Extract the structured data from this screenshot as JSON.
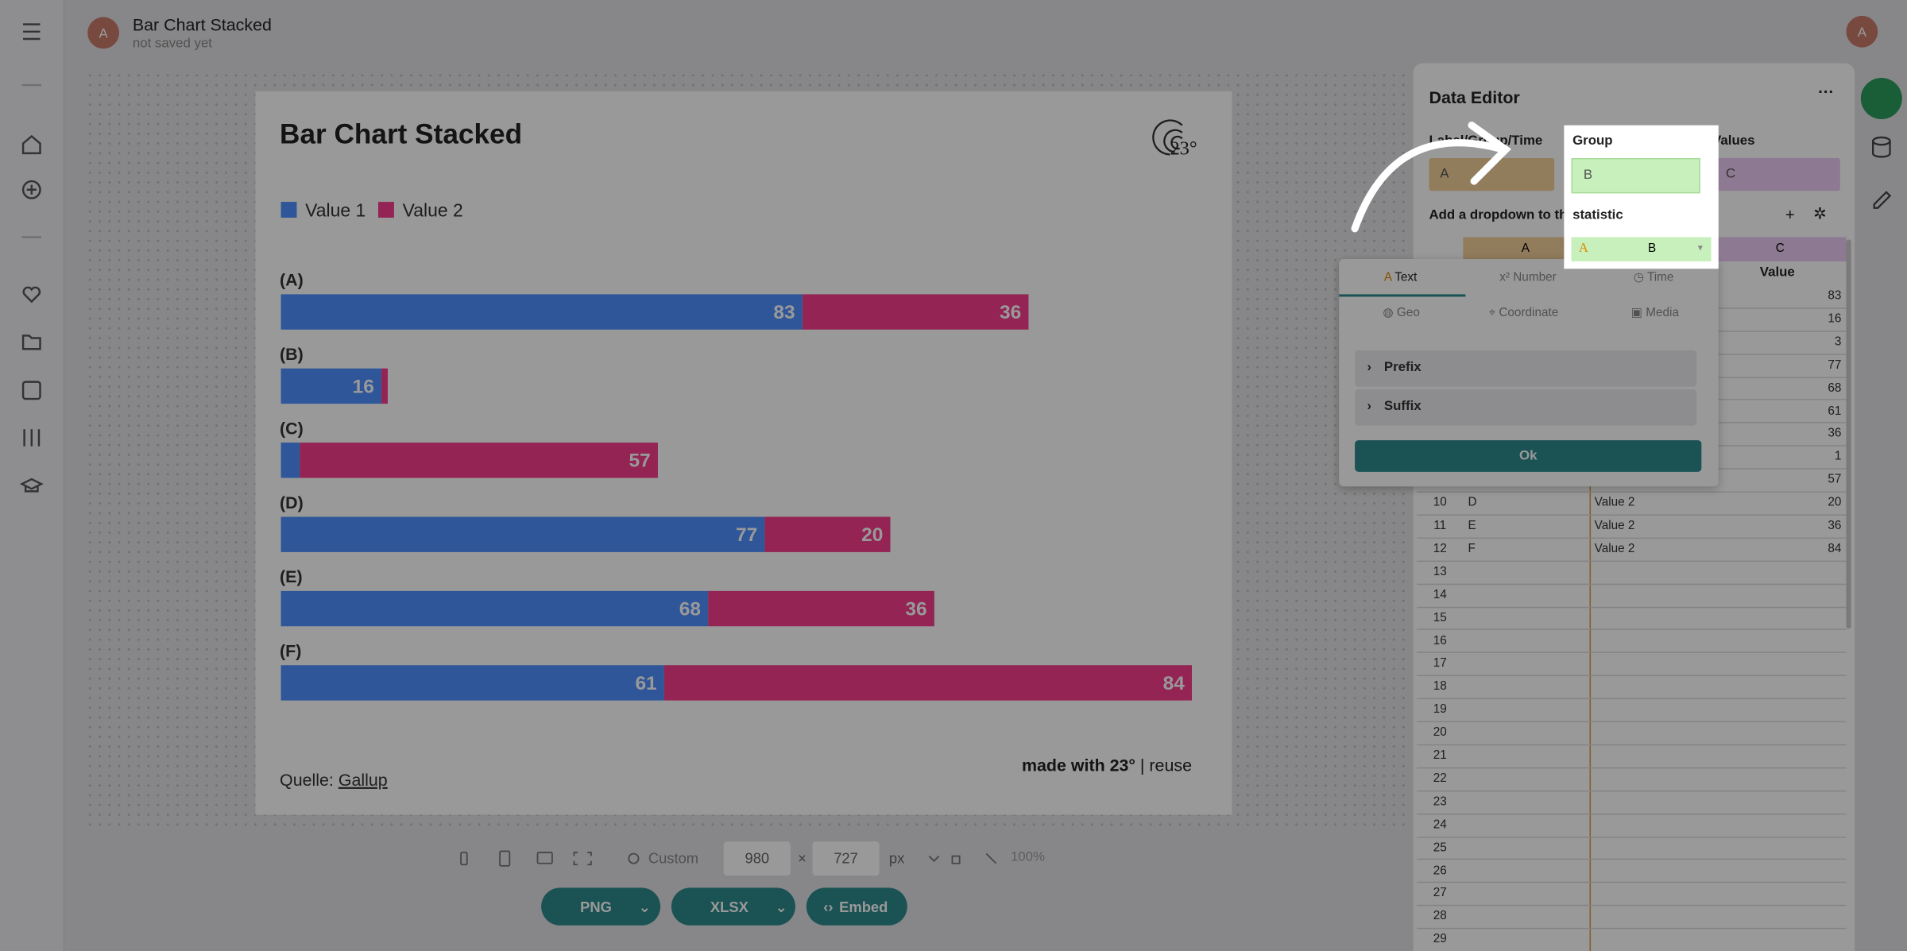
{
  "header": {
    "avatar": "A",
    "title": "Bar Chart Stacked",
    "status": "not saved yet",
    "user": "A"
  },
  "chart_data": {
    "type": "bar",
    "orientation": "horizontal",
    "stacked": true,
    "title": "Bar Chart Stacked",
    "logo": "23°",
    "categories": [
      "(A)",
      "(B)",
      "(C)",
      "(D)",
      "(E)",
      "(F)"
    ],
    "series": [
      {
        "name": "Value 1",
        "color": "#4d8fff",
        "values": [
          83,
          16,
          3,
          77,
          68,
          61
        ]
      },
      {
        "name": "Value 2",
        "color": "#f53d8c",
        "values": [
          36,
          1,
          57,
          20,
          36,
          84
        ]
      }
    ],
    "source_label": "Quelle:",
    "source": "Gallup",
    "credit": "made with 23°",
    "reuse": " | reuse"
  },
  "toolbar": {
    "preset": "Custom",
    "width": 980,
    "times": "×",
    "height": 727,
    "unit": "px",
    "zoom": "100%",
    "buttons": [
      "PNG",
      "XLSX",
      "Embed"
    ]
  },
  "editor": {
    "title": "Data Editor",
    "label_field": "Label/Group/Time",
    "label_col": "A",
    "group_field": "Group",
    "group_col": "B",
    "values_field": "Values",
    "values_col": "C",
    "dropdown_hint": "Add a dropdown to the",
    "statistic": "statistic",
    "columns": [
      "A",
      "B",
      "C"
    ],
    "value_header": "Value",
    "rows": [
      {
        "value": 83
      },
      {
        "value": 16
      },
      {
        "value": 3
      },
      {
        "value": 77
      },
      {
        "value": 68
      },
      {
        "value": 61
      },
      {
        "value": 36
      },
      {
        "value": 1
      },
      {
        "value": 57
      },
      {
        "n": 10,
        "label": "D",
        "group": "Value 2",
        "value": 20
      },
      {
        "n": 11,
        "label": "E",
        "group": "Value 2",
        "value": 36
      },
      {
        "n": 12,
        "label": "F",
        "group": "Value 2",
        "value": 84
      },
      {
        "n": 13
      },
      {
        "n": 14
      },
      {
        "n": 15
      },
      {
        "n": 16
      },
      {
        "n": 17
      },
      {
        "n": 18
      },
      {
        "n": 19
      },
      {
        "n": 20
      },
      {
        "n": 21
      },
      {
        "n": 22
      },
      {
        "n": 23
      },
      {
        "n": 24
      },
      {
        "n": 25
      },
      {
        "n": 26
      },
      {
        "n": 27
      },
      {
        "n": 28
      },
      {
        "n": 29
      }
    ]
  },
  "popup": {
    "tabs": [
      "Text",
      "Number",
      "Time",
      "Geo",
      "Coordinate",
      "Media"
    ],
    "sections": [
      "Prefix",
      "Suffix"
    ],
    "ok": "Ok"
  }
}
